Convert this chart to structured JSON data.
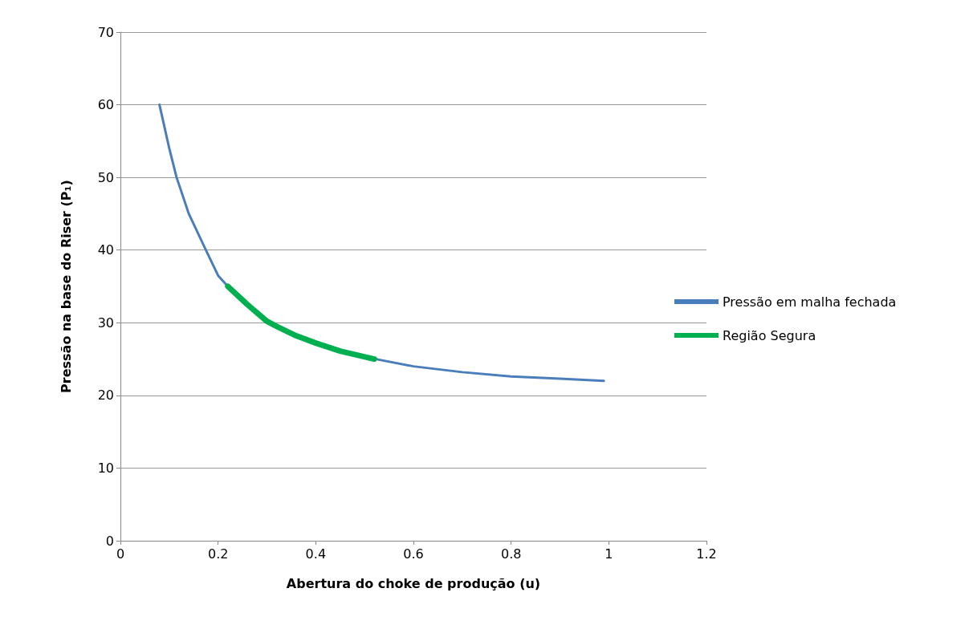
{
  "chart_data": {
    "type": "line",
    "xlabel": "Abertura do choke de produção (u)",
    "ylabel": "Pressão na base do Riser (P₁)",
    "xlim": [
      0,
      1.2
    ],
    "xticks": [
      0,
      0.2,
      0.4,
      0.6,
      0.8,
      1,
      1.2
    ],
    "ylim": [
      0,
      70
    ],
    "yticks": [
      0,
      10,
      20,
      30,
      40,
      50,
      60,
      70
    ],
    "grid": "y",
    "legend": "right",
    "marker": "none",
    "line_style": "solid",
    "series": [
      {
        "name": "Pressão em malha fechada",
        "color": "#4a7ebb",
        "x": [
          0.08,
          0.1,
          0.115,
          0.14,
          0.175,
          0.2,
          0.22,
          0.25,
          0.3,
          0.35,
          0.4,
          0.45,
          0.5,
          0.6,
          0.7,
          0.8,
          0.9,
          0.99
        ],
        "values": [
          60,
          54,
          50,
          45,
          40,
          36.5,
          35,
          32.9,
          30.3,
          28.5,
          27.1,
          26.1,
          25.3,
          24,
          23.2,
          22.6,
          22.3,
          22
        ]
      },
      {
        "name": "Região Segura",
        "color": "#00b050",
        "x": [
          0.22,
          0.26,
          0.3,
          0.32,
          0.36,
          0.4,
          0.45,
          0.52
        ],
        "values": [
          35,
          32.5,
          30.2,
          29.5,
          28.2,
          27.2,
          26.1,
          25
        ]
      }
    ]
  }
}
